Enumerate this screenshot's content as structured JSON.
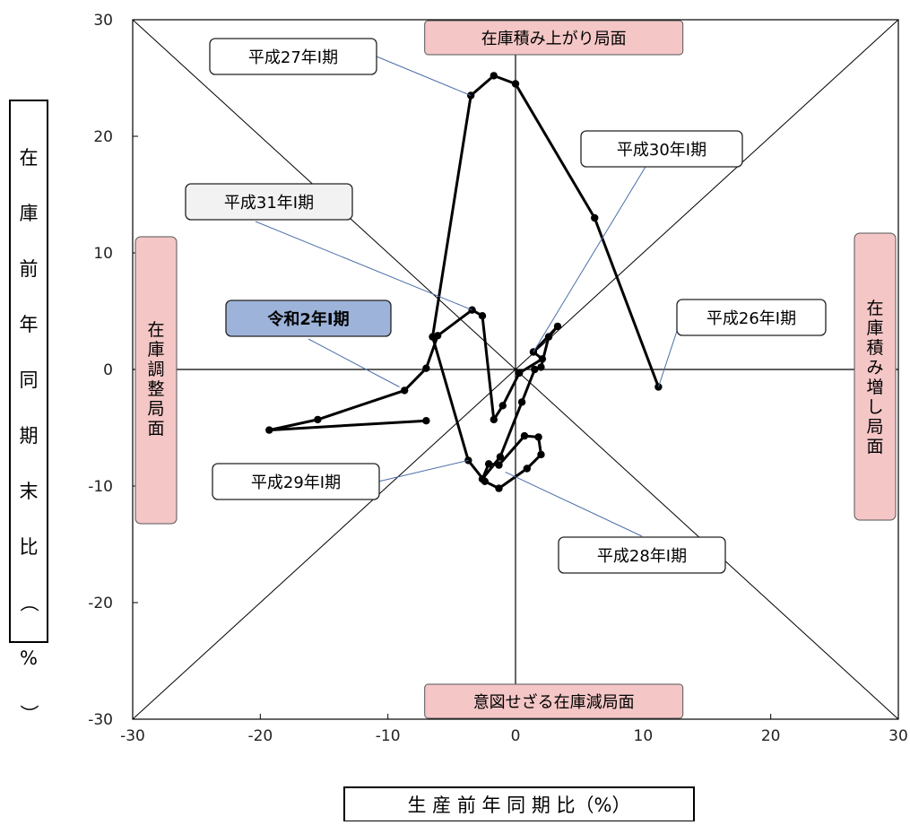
{
  "chart_data": {
    "type": "line",
    "xlabel": "生 産 前 年 同 期 比（%）",
    "ylabel": "在庫前年同期末比（%）",
    "xlim": [
      -30,
      30
    ],
    "ylim": [
      -30,
      30
    ],
    "x_ticks": [
      -30,
      -20,
      -10,
      0,
      10,
      20,
      30
    ],
    "y_ticks": [
      -30,
      -20,
      -10,
      0,
      10,
      20,
      30
    ],
    "grid": false,
    "reference_lines": [
      "x=0",
      "y=0",
      "y=x",
      "y=-x"
    ],
    "series": [
      {
        "points": [
          [
            11.2,
            -1.5
          ],
          [
            6.2,
            13.0
          ],
          [
            0.0,
            24.5
          ],
          [
            -1.7,
            25.2
          ],
          [
            -3.5,
            23.5
          ],
          [
            -6.5,
            2.8
          ],
          [
            -3.7,
            -7.8
          ],
          [
            -2.4,
            -9.6
          ],
          [
            -1.3,
            -10.2
          ],
          [
            0.9,
            -8.5
          ],
          [
            2.0,
            -7.3
          ],
          [
            1.8,
            -5.8
          ],
          [
            0.7,
            -5.7
          ],
          [
            -1.3,
            -8.2
          ],
          [
            -2.1,
            -8.1
          ],
          [
            -2.6,
            -9.4
          ],
          [
            -1.2,
            -7.5
          ],
          [
            0.5,
            -2.8
          ],
          [
            1.5,
            0.0
          ],
          [
            2.0,
            0.2
          ],
          [
            2.6,
            2.8
          ],
          [
            3.3,
            3.7
          ],
          [
            1.4,
            1.5
          ],
          [
            2.1,
            0.9
          ],
          [
            0.3,
            -0.3
          ],
          [
            -1.0,
            -3.1
          ],
          [
            -1.7,
            -4.3
          ],
          [
            -2.6,
            4.6
          ],
          [
            -3.4,
            5.1
          ],
          [
            -6.1,
            2.9
          ],
          [
            -7.0,
            0.1
          ],
          [
            -8.7,
            -1.8
          ],
          [
            -15.5,
            -4.3
          ],
          [
            -19.3,
            -5.2
          ],
          [
            -7.0,
            -4.4
          ]
        ]
      }
    ],
    "callouts": [
      {
        "label": "平成26年Ⅰ期",
        "x": 11.2,
        "y": -1.5
      },
      {
        "label": "平成27年Ⅰ期",
        "x": -3.5,
        "y": 23.5
      },
      {
        "label": "平成28年Ⅰ期",
        "x": -0.8,
        "y": -8.8
      },
      {
        "label": "平成29年Ⅰ期",
        "x": -3.7,
        "y": -7.8
      },
      {
        "label": "平成30年Ⅰ期",
        "x": 1.4,
        "y": 1.5
      },
      {
        "label": "平成31年Ⅰ期",
        "x": -3.4,
        "y": 5.1
      },
      {
        "label": "令和2年Ⅰ期",
        "x": -9.1,
        "y": -1.5,
        "highlight": true
      }
    ],
    "phase_labels": {
      "top": "在庫積み上がり局面",
      "bottom": "意図せざる在庫減局面",
      "left": "在庫調整局面",
      "right": "在庫積み増し局面"
    }
  },
  "colors": {
    "phase_fill": "#f4c6c6",
    "callout_highlight": "#9db3d9",
    "callout_default": "#ffffff",
    "callout_light": "#f2f2f2",
    "leader_line": "#4a6ea8",
    "series_line": "#000000"
  }
}
